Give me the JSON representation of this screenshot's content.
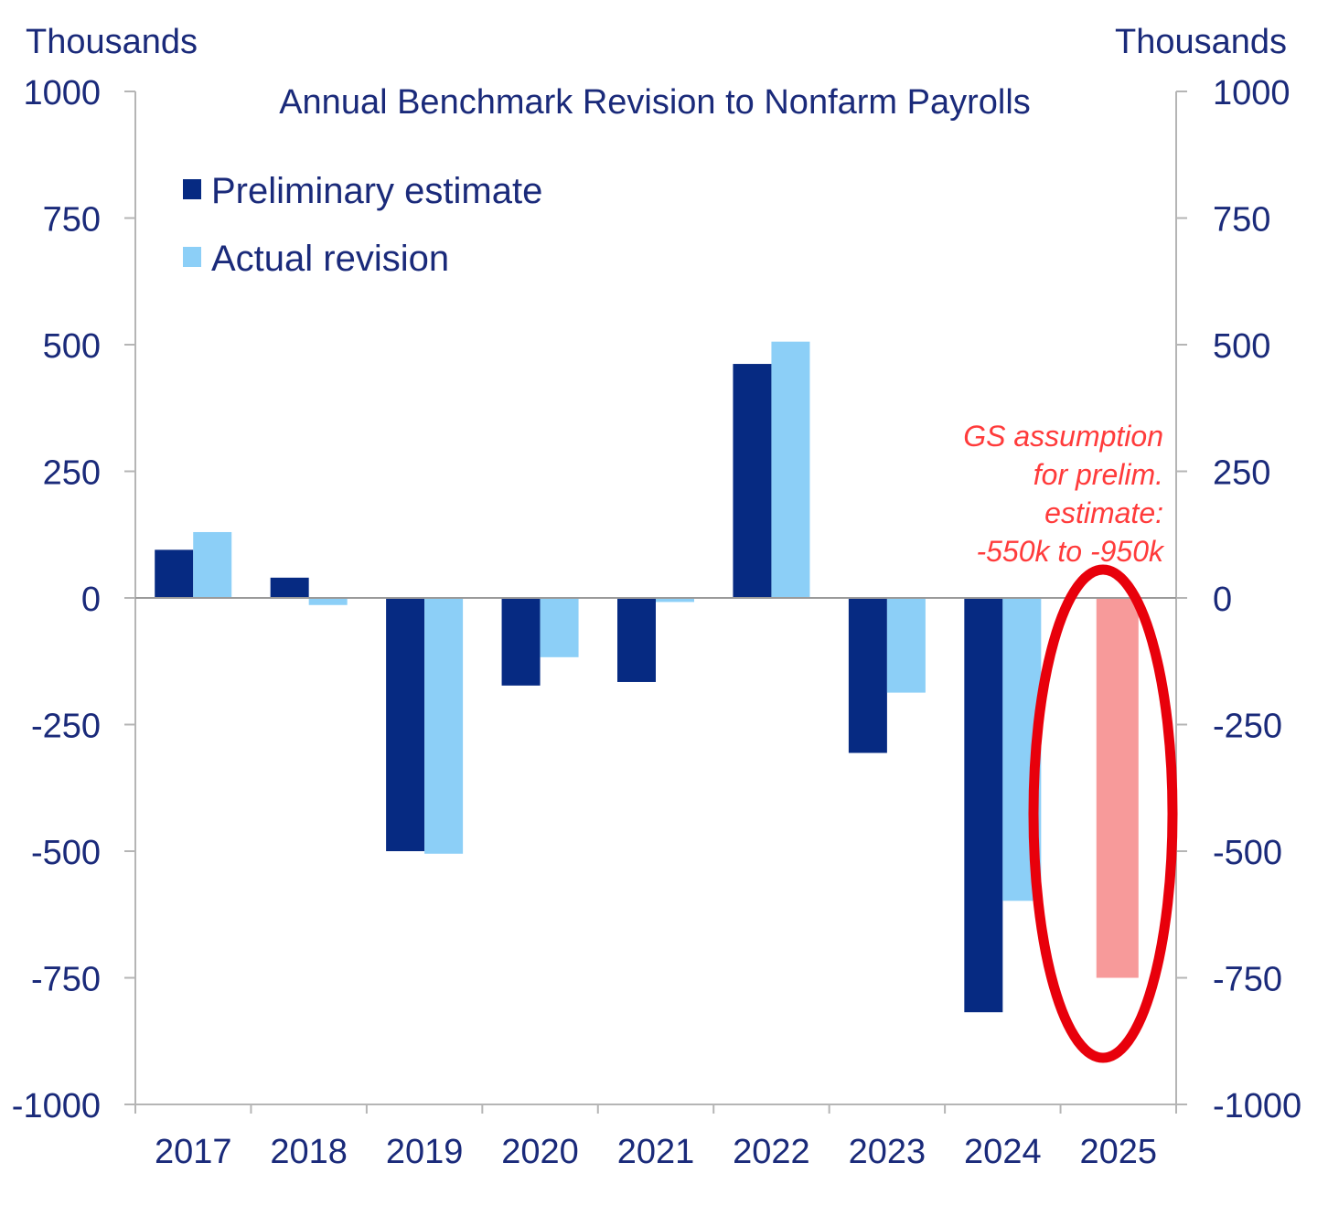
{
  "chart_data": {
    "type": "bar",
    "title": "Annual Benchmark Revision  to Nonfarm  Payrolls",
    "y_unit_left": "Thousands",
    "y_unit_right": "Thousands",
    "ylim": [
      -1000,
      1000
    ],
    "yticks": [
      1000,
      750,
      500,
      250,
      0,
      -250,
      -500,
      -750,
      -1000
    ],
    "categories": [
      "2017",
      "2018",
      "2019",
      "2020",
      "2021",
      "2022",
      "2023",
      "2024",
      "2025"
    ],
    "series": [
      {
        "name": "Preliminary estimate",
        "color": "#062a82",
        "values": [
          95,
          40,
          -500,
          -173,
          -166,
          462,
          -306,
          -818,
          null
        ]
      },
      {
        "name": "Actual revision",
        "color": "#8ccff7",
        "values": [
          130,
          -14,
          -505,
          -117,
          -8,
          506,
          -187,
          -598,
          null
        ]
      }
    ],
    "gs_assumption": {
      "category": "2025",
      "value": -750,
      "color": "#f79a9a"
    },
    "annotation_lines": [
      "GS assumption",
      "for prelim.",
      "estimate:",
      "-550k to -950k"
    ],
    "annotation_color": "#ff3b3b",
    "highlight_ellipse_color": "#e8000b",
    "legend_position": "top-left",
    "grid": false
  }
}
